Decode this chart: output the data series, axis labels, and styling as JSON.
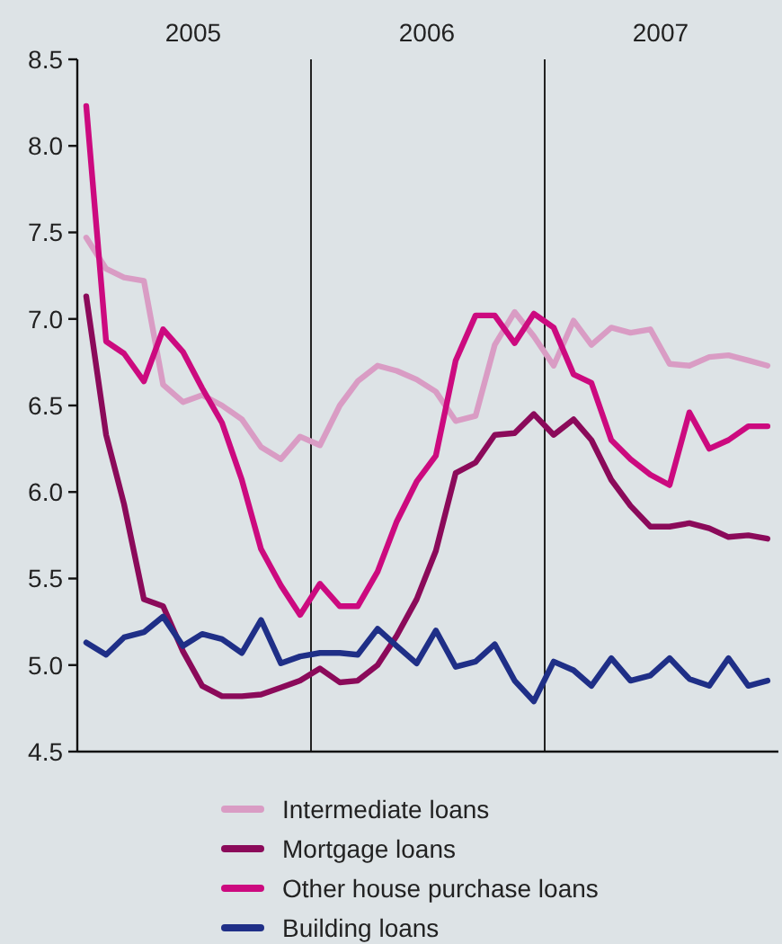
{
  "chart_data": {
    "type": "line",
    "x": [
      "2005-01-15",
      "2005-02-15",
      "2005-03-15",
      "2005-04-15",
      "2005-05-15",
      "2005-06-15",
      "2005-07-15",
      "2005-08-15",
      "2005-09-15",
      "2005-10-15",
      "2005-11-15",
      "2005-12-15",
      "2006-01-15",
      "2006-02-15",
      "2006-03-15",
      "2006-04-15",
      "2006-05-15",
      "2006-06-15",
      "2006-07-15",
      "2006-08-15",
      "2006-09-15",
      "2006-10-15",
      "2006-11-15",
      "2006-12-15",
      "2007-01-15",
      "2007-02-15",
      "2007-03-15",
      "2007-04-15",
      "2007-05-15",
      "2007-06-15",
      "2007-07-15",
      "2007-08-15",
      "2007-09-15",
      "2007-10-15",
      "2007-11-15",
      "2007-12-15"
    ],
    "series": [
      {
        "name": "Intermediate loans",
        "color": "#d99cc4",
        "values": [
          7.47,
          7.29,
          7.24,
          7.22,
          6.62,
          6.52,
          6.56,
          6.5,
          6.42,
          6.26,
          6.19,
          6.32,
          6.27,
          6.5,
          6.64,
          6.73,
          6.7,
          6.65,
          6.58,
          6.41,
          6.44,
          6.85,
          7.04,
          6.9,
          6.73,
          6.99,
          6.85,
          6.95,
          6.92,
          6.94,
          6.74,
          6.73,
          6.78,
          6.79,
          6.76,
          6.73
        ]
      },
      {
        "name": "Mortgage loans",
        "color": "#8b0a5a",
        "values": [
          7.13,
          6.33,
          5.93,
          5.38,
          5.34,
          5.08,
          4.88,
          4.82,
          4.82,
          4.83,
          4.87,
          4.91,
          4.98,
          4.9,
          4.91,
          5.0,
          5.17,
          5.38,
          5.66,
          6.11,
          6.17,
          6.33,
          6.34,
          6.45,
          6.33,
          6.42,
          6.3,
          6.07,
          5.92,
          5.8,
          5.8,
          5.82,
          5.79,
          5.74,
          5.75,
          5.73
        ]
      },
      {
        "name": "Other house purchase loans",
        "color": "#cc0a7f",
        "values": [
          8.23,
          6.87,
          6.8,
          6.64,
          6.94,
          6.81,
          6.6,
          6.4,
          6.07,
          5.67,
          5.46,
          5.29,
          5.47,
          5.34,
          5.34,
          5.54,
          5.83,
          6.06,
          6.21,
          6.76,
          7.02,
          7.02,
          6.86,
          7.03,
          6.95,
          6.68,
          6.63,
          6.3,
          6.19,
          6.1,
          6.04,
          6.46,
          6.25,
          6.3,
          6.38,
          6.38
        ]
      },
      {
        "name": "Building loans",
        "color": "#1f2f87",
        "values": [
          5.13,
          5.06,
          5.16,
          5.19,
          5.28,
          5.11,
          5.18,
          5.15,
          5.07,
          5.26,
          5.01,
          5.05,
          5.07,
          5.07,
          5.06,
          5.21,
          5.11,
          5.01,
          5.2,
          4.99,
          5.02,
          5.12,
          4.91,
          4.79,
          5.02,
          4.97,
          4.88,
          5.04,
          4.91,
          4.94,
          5.04,
          4.92,
          4.88,
          5.04,
          4.88,
          4.91
        ]
      }
    ],
    "xlim": [
      "2005-01-01",
      "2008-01-01"
    ],
    "xticks": [
      {
        "value": "2005-07-01",
        "label": "2005"
      },
      {
        "value": "2006-07-01",
        "label": "2006"
      },
      {
        "value": "2007-07-01",
        "label": "2007"
      }
    ],
    "ylim": [
      4.5,
      8.5
    ],
    "yticks": [
      4.5,
      {
        "value": 5,
        "label": "5.0"
      },
      5.5,
      {
        "value": 6,
        "label": "6.0"
      },
      6.5,
      {
        "value": 7,
        "label": "7.0"
      },
      7.5,
      {
        "value": 8,
        "label": "8.0"
      },
      8.5
    ],
    "ref_lines": [
      {
        "axis": "x",
        "value": "2006-01-01",
        "color": "#222222"
      },
      {
        "axis": "x",
        "value": "2007-01-01",
        "color": "#222222"
      }
    ],
    "grid": false,
    "legend": "bottom",
    "marker": "none",
    "line_style": "solid"
  }
}
